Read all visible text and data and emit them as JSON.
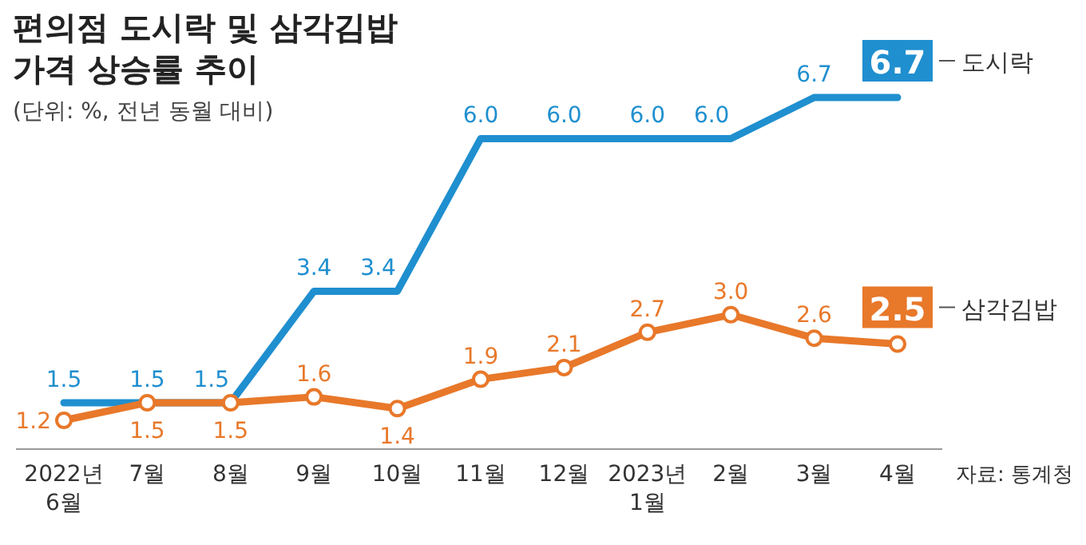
{
  "chart_data": {
    "type": "line",
    "title": "편의점 도시락 및 삼각김밥\n가격 상승률 추이",
    "subtitle": "(단위: %, 전년 동월 대비)",
    "categories": [
      "2022년\n6월",
      "7월",
      "8월",
      "9월",
      "10월",
      "11월",
      "12월",
      "2023년\n1월",
      "2월",
      "3월",
      "4월"
    ],
    "series": [
      {
        "name": "도시락",
        "color": "#1f8fcf",
        "values": [
          1.5,
          1.5,
          1.5,
          3.4,
          3.4,
          6.0,
          6.0,
          6.0,
          6.0,
          6.7,
          6.7
        ],
        "value_labels": [
          "1.5",
          "1.5",
          "1.5",
          "3.4",
          "3.4",
          "6.0",
          "6.0",
          "6.0",
          "6.0",
          "6.7",
          "6.7"
        ],
        "marker": "none"
      },
      {
        "name": "삼각김밥",
        "color": "#e8782a",
        "values": [
          1.2,
          1.5,
          1.5,
          1.6,
          1.4,
          1.9,
          2.1,
          2.7,
          3.0,
          2.6,
          2.5
        ],
        "value_labels": [
          "1.2",
          "1.5",
          "1.5",
          "1.6",
          "1.4",
          "1.9",
          "2.1",
          "2.7",
          "3.0",
          "2.6",
          "2.5"
        ],
        "marker": "circle"
      }
    ],
    "grid": false,
    "line_style": "solid",
    "annotations": [
      "자료: 통계청"
    ]
  }
}
